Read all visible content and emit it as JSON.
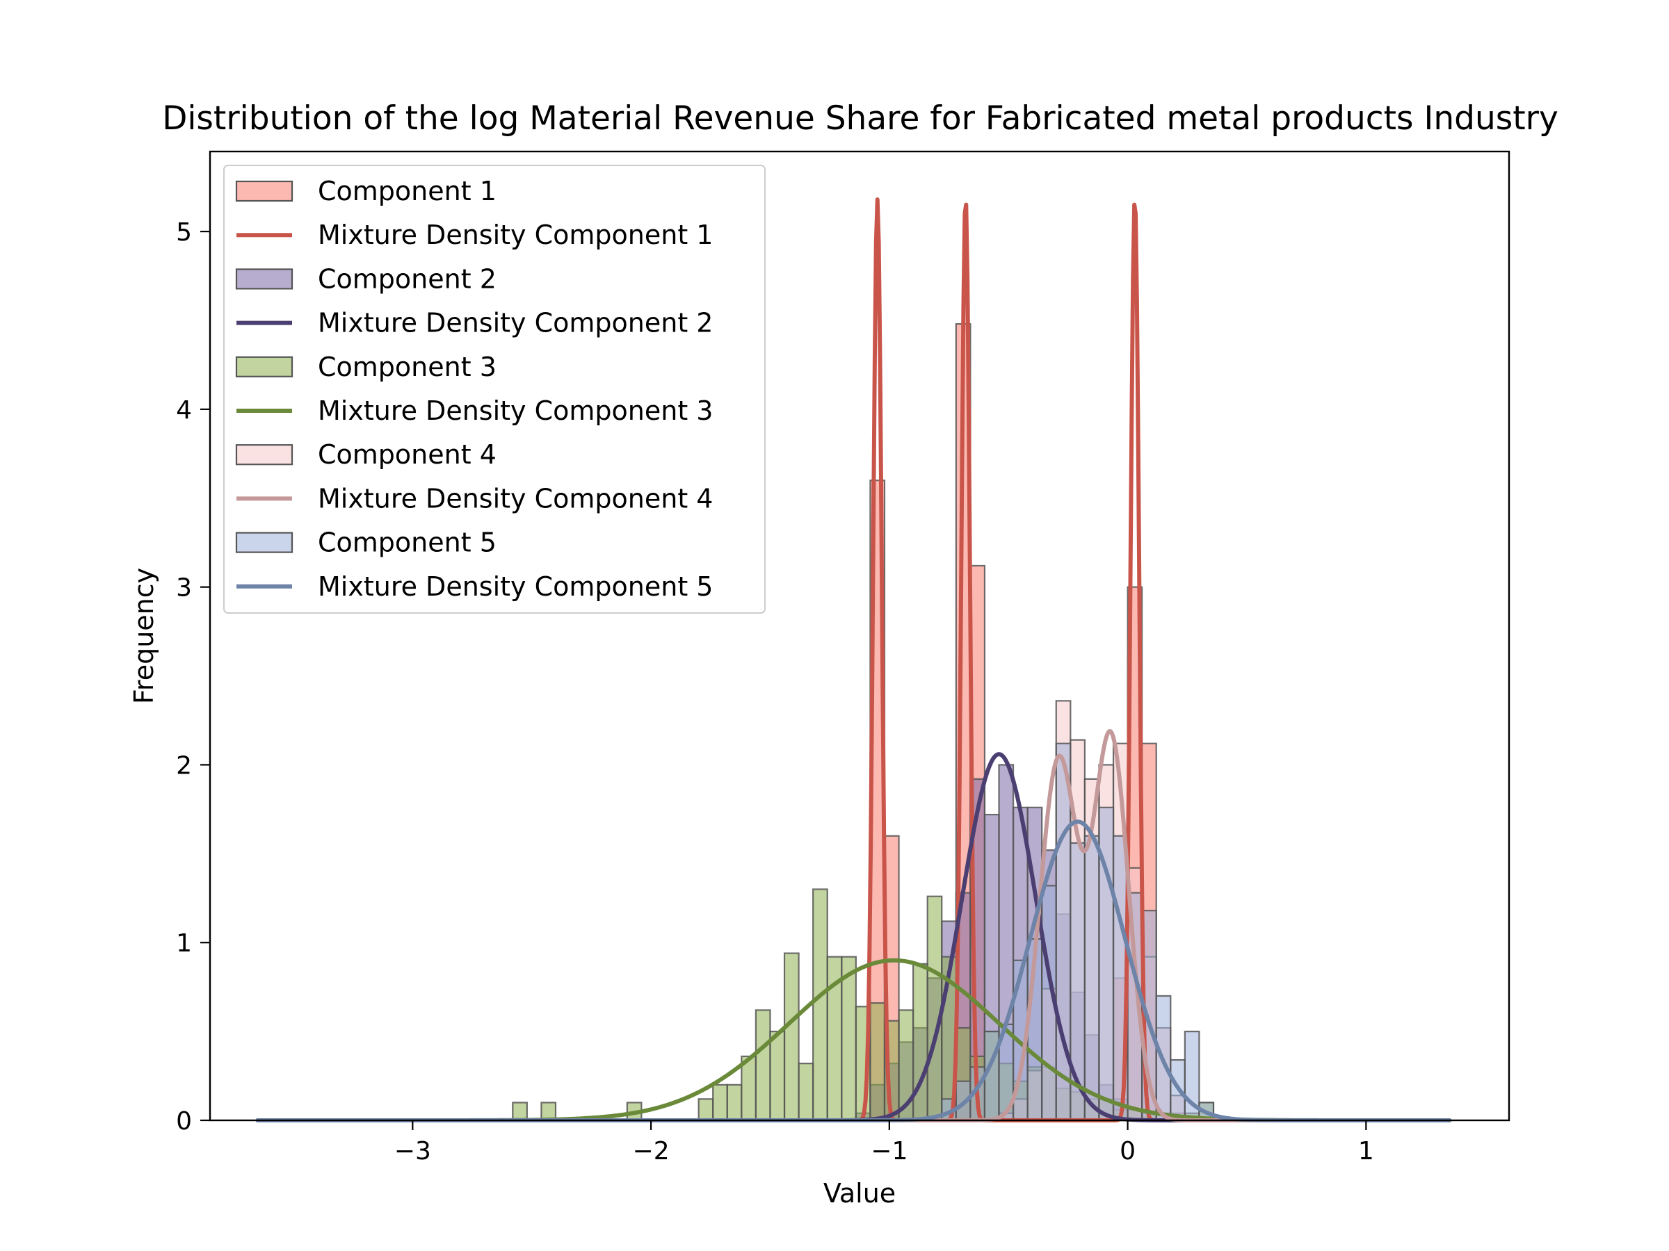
{
  "chart_data": {
    "type": "histogram",
    "title": "Distribution of the log Material Revenue Share for Fabricated metal products Industry",
    "xlabel": "Value",
    "ylabel": "Frequency",
    "xlim": [
      -3.85,
      1.6
    ],
    "ylim": [
      0,
      5.45
    ],
    "xticks": [
      -3,
      -2,
      -1,
      0,
      1
    ],
    "xtick_labels": [
      "−3",
      "−2",
      "−1",
      "0",
      "1"
    ],
    "yticks": [
      0,
      1,
      2,
      3,
      4,
      5
    ],
    "ytick_labels": [
      "0",
      "1",
      "2",
      "3",
      "4",
      "5"
    ],
    "bin_width": 0.06,
    "legend_position": "upper-left",
    "series": [
      {
        "name": "Component 1",
        "kind": "histogram",
        "color": "#fa8072",
        "edgecolor": "#555555",
        "alpha": 0.55,
        "bins": [
          [
            -1.08,
            3.6
          ],
          [
            -1.02,
            1.6
          ],
          [
            -0.72,
            4.48
          ],
          [
            -0.66,
            3.12
          ],
          [
            -0.06,
            0.8
          ],
          [
            0.0,
            3.0
          ],
          [
            0.06,
            2.12
          ]
        ]
      },
      {
        "name": "Mixture Density Component 1",
        "kind": "density",
        "color": "#c9554a",
        "peaks": [
          {
            "mu": -1.05,
            "sigma": 0.018,
            "height": 5.18
          },
          {
            "mu": -0.68,
            "sigma": 0.018,
            "height": 5.19
          },
          {
            "mu": 0.03,
            "sigma": 0.018,
            "height": 5.19
          }
        ],
        "range": [
          -3.65,
          1.35
        ]
      },
      {
        "name": "Component 2",
        "kind": "histogram",
        "color": "#7b6ca8",
        "edgecolor": "#555555",
        "alpha": 0.55,
        "bins": [
          [
            -1.14,
            0.04
          ],
          [
            -1.08,
            0.2
          ],
          [
            -1.02,
            0.32
          ],
          [
            -0.96,
            0.44
          ],
          [
            -0.9,
            0.52
          ],
          [
            -0.84,
            0.8
          ],
          [
            -0.78,
            1.12
          ],
          [
            -0.72,
            1.28
          ],
          [
            -0.66,
            1.92
          ],
          [
            -0.6,
            1.72
          ],
          [
            -0.54,
            2.0
          ],
          [
            -0.48,
            1.76
          ],
          [
            -0.42,
            1.76
          ],
          [
            -0.36,
            1.52
          ],
          [
            -0.3,
            1.16
          ],
          [
            -0.24,
            0.72
          ],
          [
            -0.18,
            0.48
          ],
          [
            -0.12,
            0.2
          ],
          [
            -0.06,
            0.12
          ]
        ]
      },
      {
        "name": "Mixture Density Component 2",
        "kind": "density",
        "color": "#4b3f72",
        "peaks": [
          {
            "mu": -0.54,
            "sigma": 0.155,
            "height": 2.06
          }
        ],
        "range": [
          -3.65,
          1.35
        ]
      },
      {
        "name": "Component 3",
        "kind": "histogram",
        "color": "#90b050",
        "edgecolor": "#555555",
        "alpha": 0.55,
        "bins": [
          [
            -2.58,
            0.1
          ],
          [
            -2.46,
            0.1
          ],
          [
            -2.1,
            0.1
          ],
          [
            -1.8,
            0.12
          ],
          [
            -1.74,
            0.2
          ],
          [
            -1.68,
            0.2
          ],
          [
            -1.62,
            0.36
          ],
          [
            -1.56,
            0.62
          ],
          [
            -1.5,
            0.5
          ],
          [
            -1.44,
            0.94
          ],
          [
            -1.38,
            0.32
          ],
          [
            -1.32,
            1.3
          ],
          [
            -1.26,
            0.92
          ],
          [
            -1.2,
            0.92
          ],
          [
            -1.14,
            0.64
          ],
          [
            -1.08,
            0.66
          ],
          [
            -1.02,
            0.56
          ],
          [
            -0.96,
            0.62
          ],
          [
            -0.9,
            0.88
          ],
          [
            -0.84,
            1.26
          ],
          [
            -0.78,
            0.92
          ],
          [
            -0.72,
            0.52
          ],
          [
            -0.66,
            0.36
          ],
          [
            -0.6,
            0.5
          ],
          [
            -0.54,
            0.32
          ],
          [
            -0.48,
            0.22
          ],
          [
            -0.42,
            0.3
          ],
          [
            -0.36,
            0.3
          ],
          [
            -0.3,
            0.18
          ],
          [
            -0.24,
            0.16
          ],
          [
            -0.18,
            0.12
          ],
          [
            -0.12,
            0.12
          ],
          [
            -0.06,
            0.06
          ],
          [
            0.0,
            0.06
          ],
          [
            0.06,
            0.04
          ],
          [
            0.12,
            0.04
          ],
          [
            0.18,
            0.04
          ],
          [
            0.24,
            0.04
          ],
          [
            0.3,
            0.1
          ]
        ]
      },
      {
        "name": "Mixture Density Component 3",
        "kind": "density",
        "color": "#6a8a3a",
        "peaks": [
          {
            "mu": -0.98,
            "sigma": 0.44,
            "height": 0.9
          }
        ],
        "range": [
          -3.65,
          1.35
        ]
      },
      {
        "name": "Component 4",
        "kind": "histogram",
        "color": "#f5c8cb",
        "edgecolor": "#555555",
        "alpha": 0.55,
        "bins": [
          [
            -0.54,
            0.04
          ],
          [
            -0.48,
            0.12
          ],
          [
            -0.42,
            0.28
          ],
          [
            -0.36,
            0.74
          ],
          [
            -0.3,
            2.36
          ],
          [
            -0.24,
            2.14
          ],
          [
            -0.18,
            1.92
          ],
          [
            -0.12,
            2.0
          ],
          [
            -0.06,
            2.12
          ],
          [
            0.0,
            1.42
          ],
          [
            0.06,
            0.92
          ],
          [
            0.12,
            0.52
          ],
          [
            0.18,
            0.14
          ]
        ]
      },
      {
        "name": "Mixture Density Component 4",
        "kind": "density",
        "color": "#c4999a",
        "peaks": [
          {
            "mu": -0.29,
            "sigma": 0.08,
            "height": 2.02
          },
          {
            "mu": -0.07,
            "sigma": 0.075,
            "height": 2.14
          }
        ],
        "range": [
          -3.65,
          1.35
        ]
      },
      {
        "name": "Component 5",
        "kind": "histogram",
        "color": "#9fb1d8",
        "edgecolor": "#555555",
        "alpha": 0.55,
        "bins": [
          [
            -0.78,
            0.12
          ],
          [
            -0.72,
            0.22
          ],
          [
            -0.66,
            0.3
          ],
          [
            -0.6,
            0.5
          ],
          [
            -0.54,
            0.54
          ],
          [
            -0.48,
            0.9
          ],
          [
            -0.42,
            1.02
          ],
          [
            -0.36,
            1.32
          ],
          [
            -0.3,
            2.12
          ],
          [
            -0.24,
            1.56
          ],
          [
            -0.18,
            1.6
          ],
          [
            -0.12,
            1.76
          ],
          [
            -0.06,
            1.6
          ],
          [
            0.0,
            1.28
          ],
          [
            0.06,
            1.18
          ],
          [
            0.12,
            0.7
          ],
          [
            0.18,
            0.34
          ],
          [
            0.24,
            0.5
          ],
          [
            0.3,
            0.1
          ]
        ]
      },
      {
        "name": "Mixture Density Component 5",
        "kind": "density",
        "color": "#6d84a8",
        "peaks": [
          {
            "mu": -0.21,
            "sigma": 0.2,
            "height": 1.68
          }
        ],
        "range": [
          -3.65,
          1.35
        ]
      }
    ]
  }
}
